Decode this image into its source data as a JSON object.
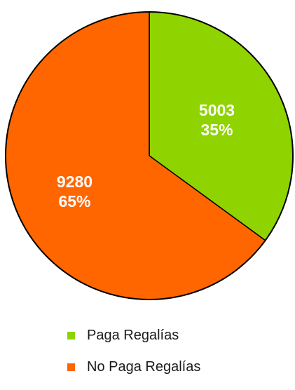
{
  "chart_data": {
    "type": "pie",
    "start": "12 o'clock",
    "direction": "clockwise",
    "slices": [
      {
        "name": "Paga Regalías",
        "value": 5003,
        "percent": "35%",
        "color": "#8fd400"
      },
      {
        "name": "No Paga Regalías",
        "value": 9280,
        "percent": "65%",
        "color": "#ff6600"
      }
    ],
    "legend_position": "bottom"
  }
}
